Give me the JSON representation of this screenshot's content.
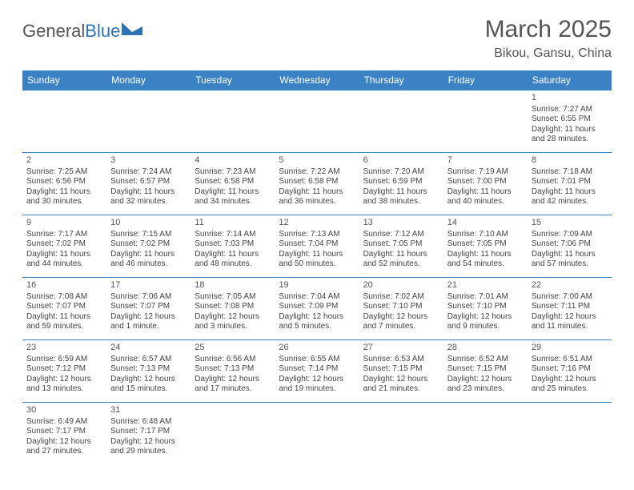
{
  "logo": {
    "part1": "General",
    "part2": "Blue",
    "shape_color": "#2e74b5"
  },
  "title": "March 2025",
  "location": "Bikou, Gansu, China",
  "header_bg": "#3b82c4",
  "border_color": "#3b82c4",
  "weekdays": [
    "Sunday",
    "Monday",
    "Tuesday",
    "Wednesday",
    "Thursday",
    "Friday",
    "Saturday"
  ],
  "leading_blanks": 6,
  "days": [
    {
      "n": 1,
      "sr": "7:27 AM",
      "ss": "6:55 PM",
      "dl": "11 hours and 28 minutes."
    },
    {
      "n": 2,
      "sr": "7:25 AM",
      "ss": "6:56 PM",
      "dl": "11 hours and 30 minutes."
    },
    {
      "n": 3,
      "sr": "7:24 AM",
      "ss": "6:57 PM",
      "dl": "11 hours and 32 minutes."
    },
    {
      "n": 4,
      "sr": "7:23 AM",
      "ss": "6:58 PM",
      "dl": "11 hours and 34 minutes."
    },
    {
      "n": 5,
      "sr": "7:22 AM",
      "ss": "6:58 PM",
      "dl": "11 hours and 36 minutes."
    },
    {
      "n": 6,
      "sr": "7:20 AM",
      "ss": "6:59 PM",
      "dl": "11 hours and 38 minutes."
    },
    {
      "n": 7,
      "sr": "7:19 AM",
      "ss": "7:00 PM",
      "dl": "11 hours and 40 minutes."
    },
    {
      "n": 8,
      "sr": "7:18 AM",
      "ss": "7:01 PM",
      "dl": "11 hours and 42 minutes."
    },
    {
      "n": 9,
      "sr": "7:17 AM",
      "ss": "7:02 PM",
      "dl": "11 hours and 44 minutes."
    },
    {
      "n": 10,
      "sr": "7:15 AM",
      "ss": "7:02 PM",
      "dl": "11 hours and 46 minutes."
    },
    {
      "n": 11,
      "sr": "7:14 AM",
      "ss": "7:03 PM",
      "dl": "11 hours and 48 minutes."
    },
    {
      "n": 12,
      "sr": "7:13 AM",
      "ss": "7:04 PM",
      "dl": "11 hours and 50 minutes."
    },
    {
      "n": 13,
      "sr": "7:12 AM",
      "ss": "7:05 PM",
      "dl": "11 hours and 52 minutes."
    },
    {
      "n": 14,
      "sr": "7:10 AM",
      "ss": "7:05 PM",
      "dl": "11 hours and 54 minutes."
    },
    {
      "n": 15,
      "sr": "7:09 AM",
      "ss": "7:06 PM",
      "dl": "11 hours and 57 minutes."
    },
    {
      "n": 16,
      "sr": "7:08 AM",
      "ss": "7:07 PM",
      "dl": "11 hours and 59 minutes."
    },
    {
      "n": 17,
      "sr": "7:06 AM",
      "ss": "7:07 PM",
      "dl": "12 hours and 1 minute."
    },
    {
      "n": 18,
      "sr": "7:05 AM",
      "ss": "7:08 PM",
      "dl": "12 hours and 3 minutes."
    },
    {
      "n": 19,
      "sr": "7:04 AM",
      "ss": "7:09 PM",
      "dl": "12 hours and 5 minutes."
    },
    {
      "n": 20,
      "sr": "7:02 AM",
      "ss": "7:10 PM",
      "dl": "12 hours and 7 minutes."
    },
    {
      "n": 21,
      "sr": "7:01 AM",
      "ss": "7:10 PM",
      "dl": "12 hours and 9 minutes."
    },
    {
      "n": 22,
      "sr": "7:00 AM",
      "ss": "7:11 PM",
      "dl": "12 hours and 11 minutes."
    },
    {
      "n": 23,
      "sr": "6:59 AM",
      "ss": "7:12 PM",
      "dl": "12 hours and 13 minutes."
    },
    {
      "n": 24,
      "sr": "6:57 AM",
      "ss": "7:13 PM",
      "dl": "12 hours and 15 minutes."
    },
    {
      "n": 25,
      "sr": "6:56 AM",
      "ss": "7:13 PM",
      "dl": "12 hours and 17 minutes."
    },
    {
      "n": 26,
      "sr": "6:55 AM",
      "ss": "7:14 PM",
      "dl": "12 hours and 19 minutes."
    },
    {
      "n": 27,
      "sr": "6:53 AM",
      "ss": "7:15 PM",
      "dl": "12 hours and 21 minutes."
    },
    {
      "n": 28,
      "sr": "6:52 AM",
      "ss": "7:15 PM",
      "dl": "12 hours and 23 minutes."
    },
    {
      "n": 29,
      "sr": "6:51 AM",
      "ss": "7:16 PM",
      "dl": "12 hours and 25 minutes."
    },
    {
      "n": 30,
      "sr": "6:49 AM",
      "ss": "7:17 PM",
      "dl": "12 hours and 27 minutes."
    },
    {
      "n": 31,
      "sr": "6:48 AM",
      "ss": "7:17 PM",
      "dl": "12 hours and 29 minutes."
    }
  ],
  "labels": {
    "sunrise": "Sunrise:",
    "sunset": "Sunset:",
    "daylight": "Daylight:"
  }
}
